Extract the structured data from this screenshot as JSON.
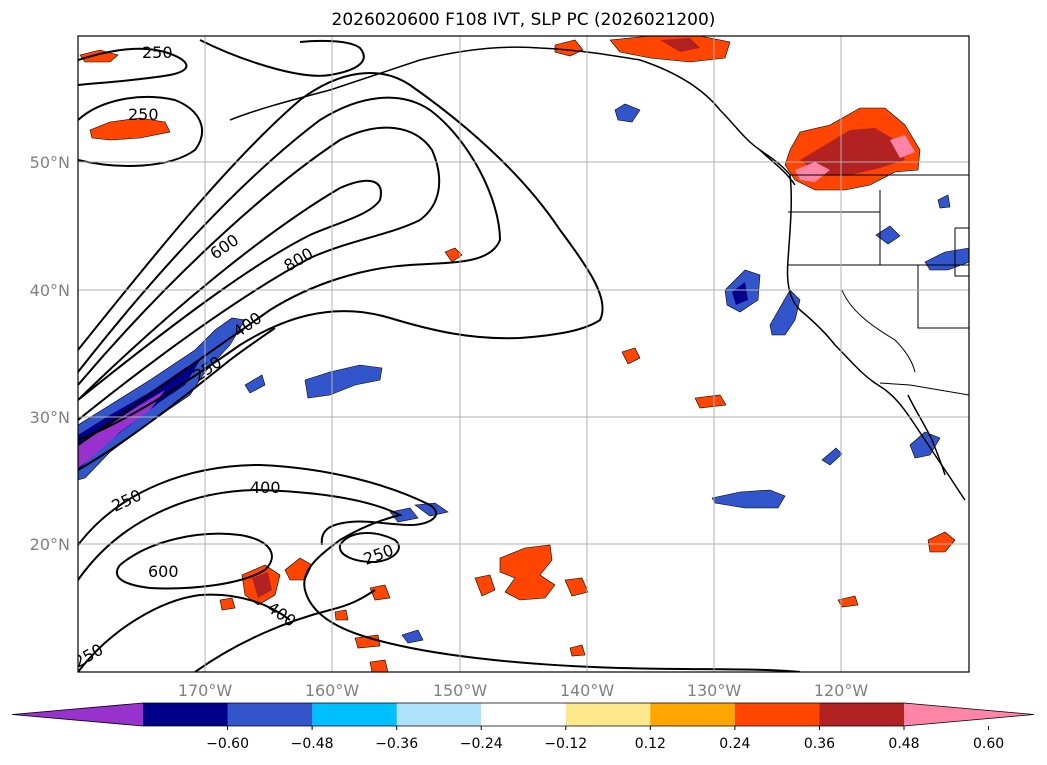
{
  "title": "2026020600 F108 IVT, SLP PC (2026021200)",
  "lat_labels": [
    "50°N",
    "40°N",
    "30°N",
    "20°N"
  ],
  "lon_labels": [
    "170°W",
    "160°W",
    "150°W",
    "140°W",
    "130°W",
    "120°W"
  ],
  "contour_labels": [
    "250",
    "250",
    "600",
    "800",
    "400",
    "250",
    "250",
    "400",
    "600",
    "250",
    "400",
    "250"
  ],
  "colorbar": {
    "ticks": [
      "−0.60",
      "−0.48",
      "−0.36",
      "−0.24",
      "−0.12",
      "0.12",
      "0.24",
      "0.36",
      "0.48",
      "0.60"
    ],
    "colors": [
      "#9932CC",
      "#00008B",
      "#3355CC",
      "#00BFFF",
      "#ADE3FA",
      "#FFFFFF",
      "#FFE88C",
      "#FFA500",
      "#FF4500",
      "#B22222",
      "#FF85A8"
    ]
  },
  "colors": {
    "grid": "#b0b0b0",
    "axis_label": "#808080",
    "contour": "#000000"
  }
}
